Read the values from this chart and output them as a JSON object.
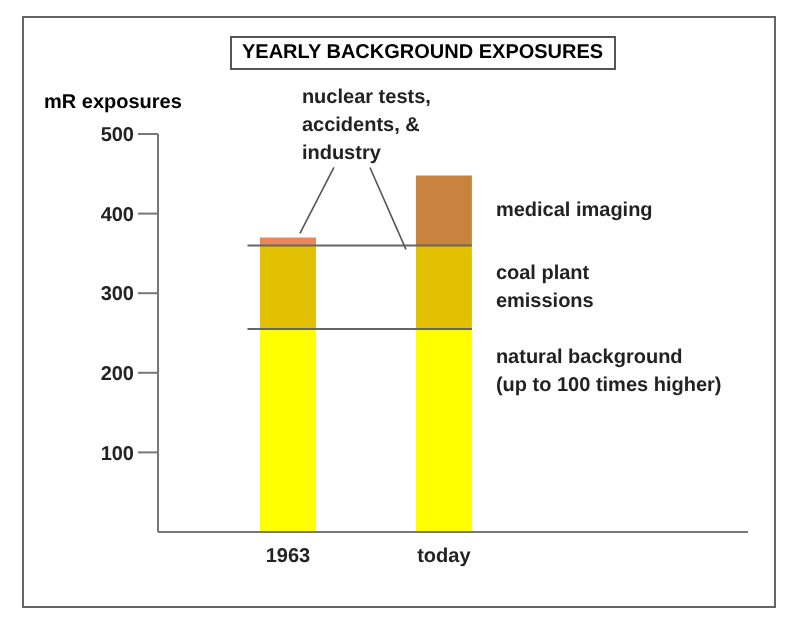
{
  "chart_data": {
    "type": "bar",
    "title": "YEARLY BACKGROUND EXPOSURES",
    "ylabel": "mR exposures",
    "categories": [
      "1963",
      "today"
    ],
    "stacked": true,
    "ylim": [
      0,
      500
    ],
    "yticks": [
      100,
      200,
      300,
      400,
      500
    ],
    "series": [
      {
        "name": "natural background",
        "color": "#ffff00",
        "values": [
          255,
          255
        ]
      },
      {
        "name": "coal plant emissions",
        "color": "#e0c000",
        "values": [
          105,
          105
        ]
      },
      {
        "name": "nuclear tests, accidents, & industry",
        "color": "#e8875a",
        "values": [
          10,
          null
        ]
      },
      {
        "name": "medical imaging",
        "color": "#c8843e",
        "values": [
          null,
          88
        ]
      }
    ],
    "ref_lines": [
      {
        "axis": "y",
        "value": 255
      },
      {
        "axis": "y",
        "value": 360
      }
    ],
    "annotations": [
      "(up to 100 times higher)"
    ]
  }
}
